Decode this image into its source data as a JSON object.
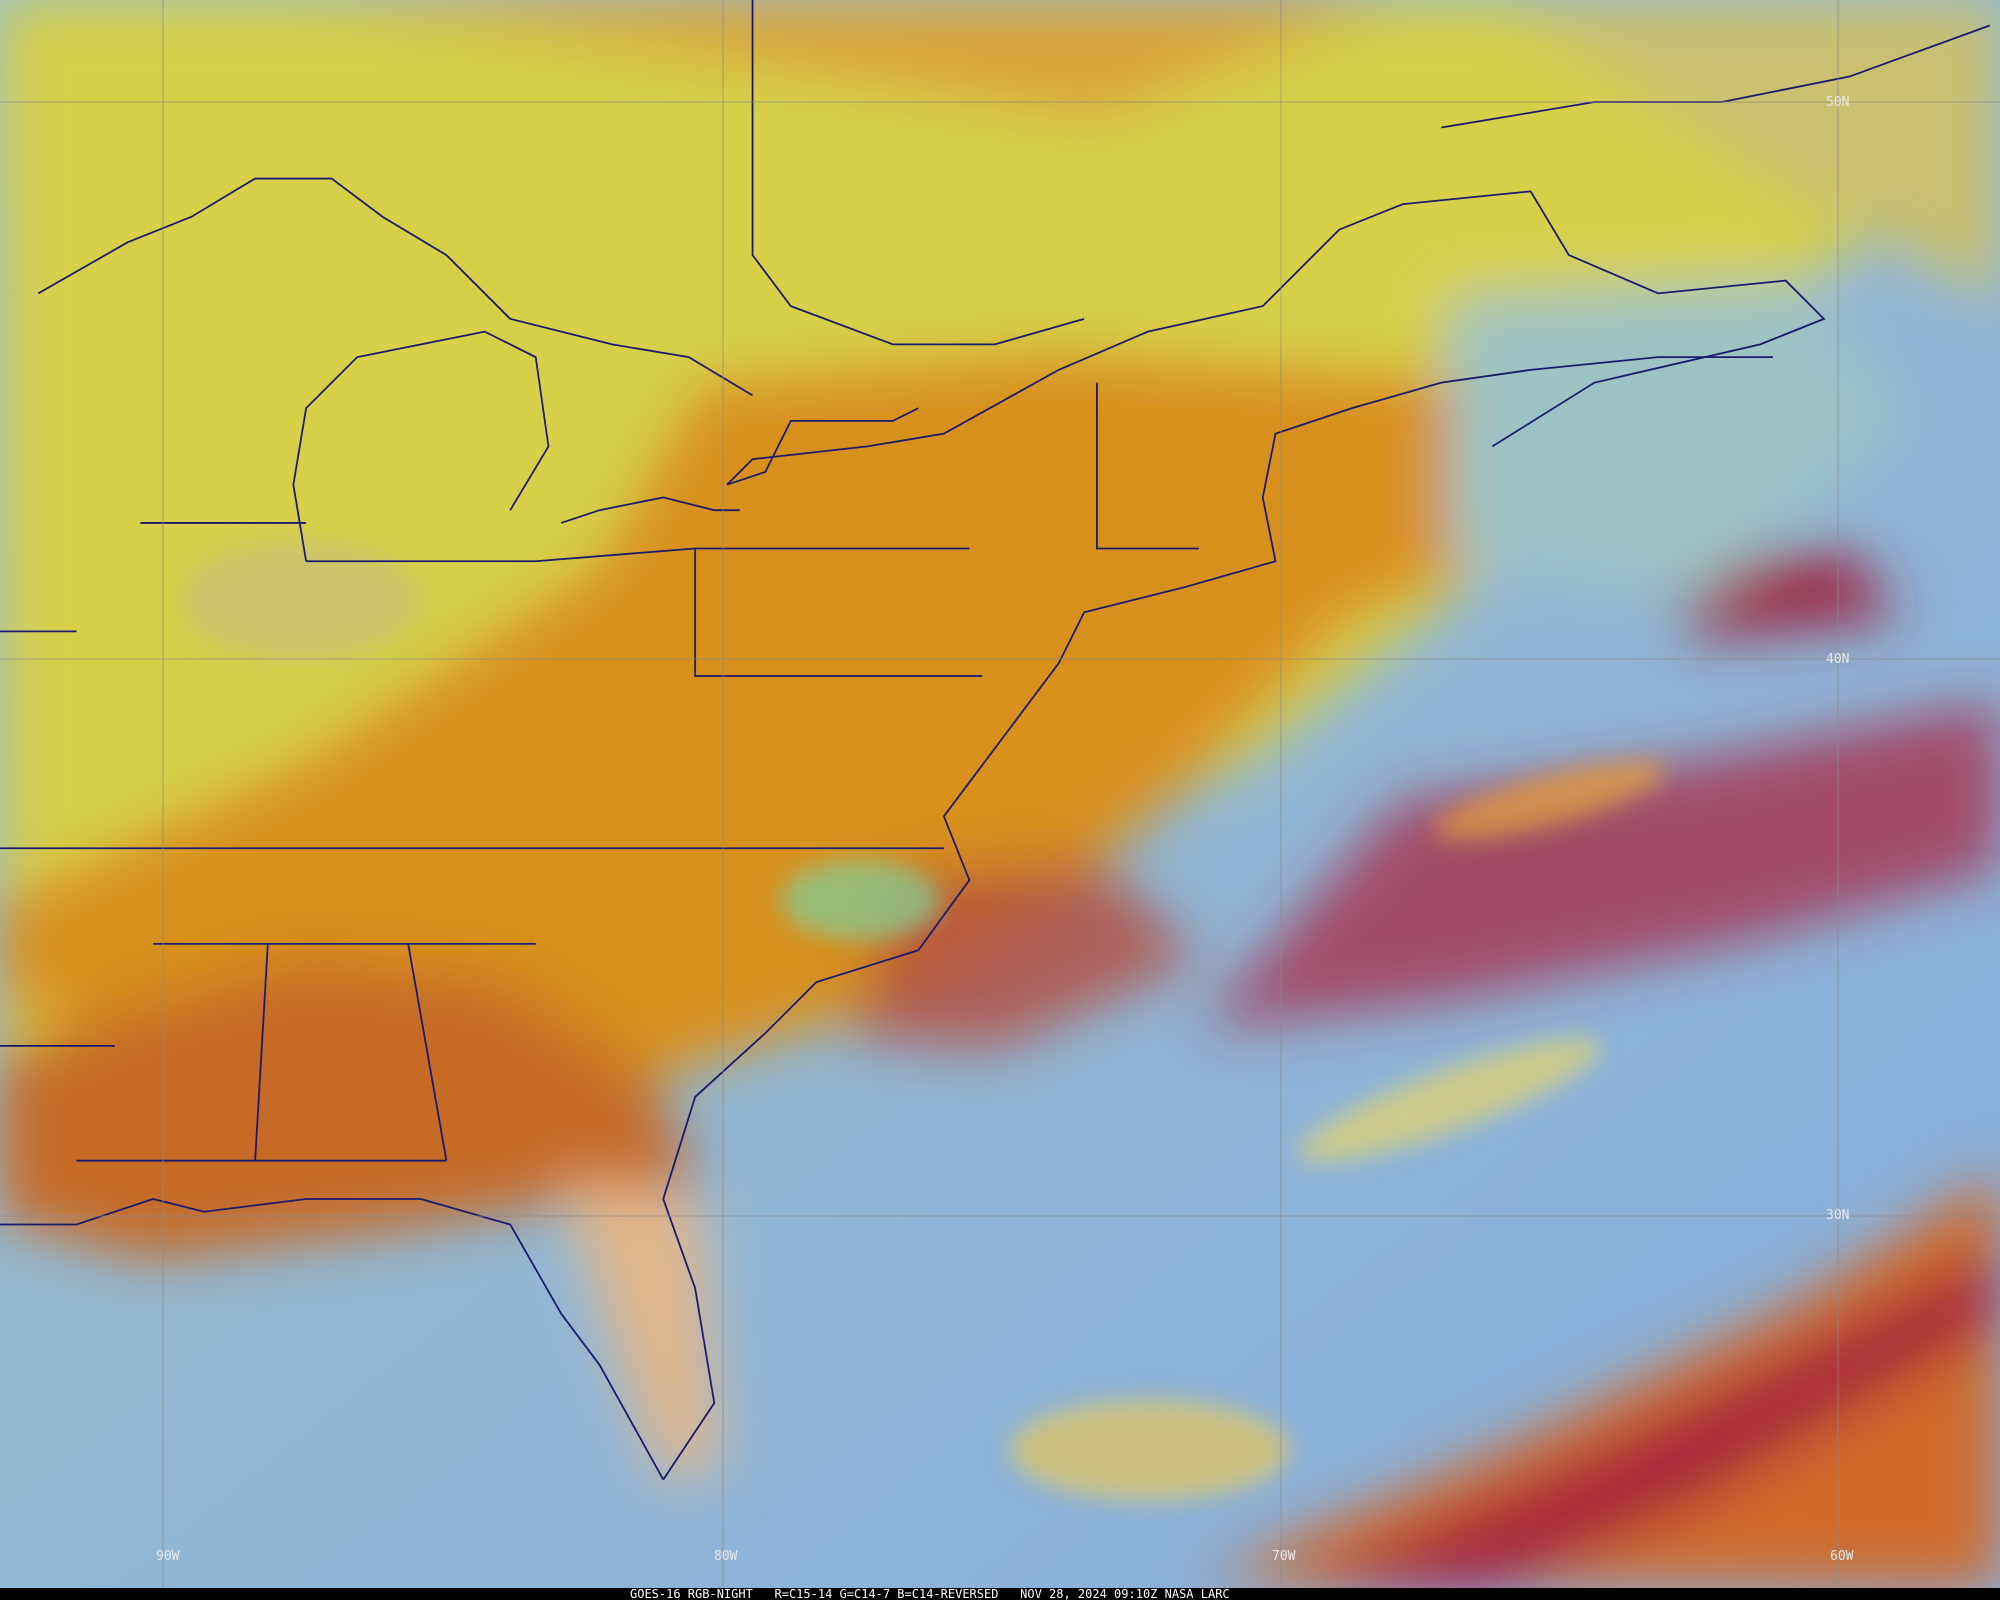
{
  "latitude_labels": [
    "50N",
    "40N",
    "30N"
  ],
  "longitude_labels": [
    "90W",
    "80W",
    "70W",
    "60W"
  ],
  "footer": "GOES-16 RGB-NIGHT   R=C15-14 G=C14-7 B=C14-REVERSED   NOV 28, 2024 09:10Z NASA LARC"
}
